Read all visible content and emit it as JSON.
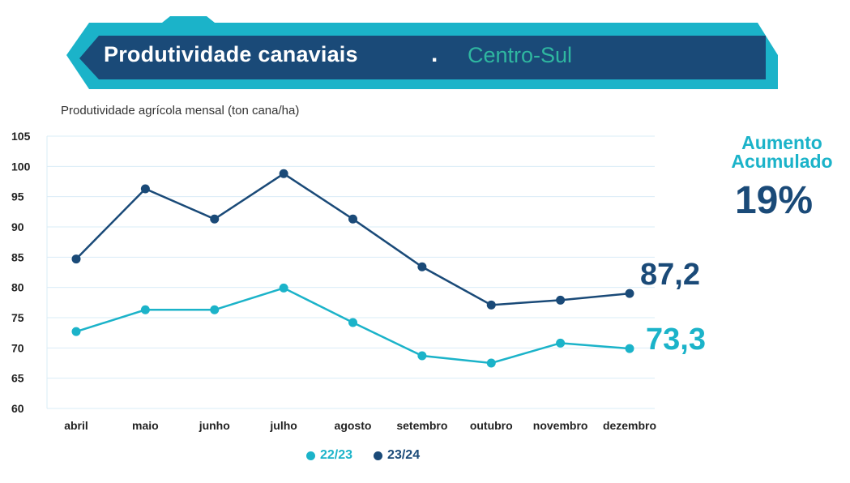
{
  "header": {
    "title": "Produtividade canaviais",
    "separator": ".",
    "region": "Centro-Sul"
  },
  "subtitle": "Produtividade agrícola mensal (ton cana/ha)",
  "kpi": {
    "label_line1": "Aumento",
    "label_line2": "Acumulado",
    "value": "19%"
  },
  "end_labels": {
    "s2324": "87,2",
    "s2223": "73,3"
  },
  "legend": [
    {
      "name": "22/23",
      "color": "#1bb3c9"
    },
    {
      "name": "23/24",
      "color": "#1a4a78"
    }
  ],
  "colors": {
    "banner_dark": "#1a4a78",
    "banner_light": "#1bb3c9",
    "region_text": "#2fb7a0",
    "grid": "#d9ecf7"
  },
  "chart_data": {
    "type": "line",
    "title": "Produtividade agrícola mensal (ton cana/ha)",
    "categories": [
      "abril",
      "maio",
      "junho",
      "julho",
      "agosto",
      "setembro",
      "outubro",
      "novembro",
      "dezembro"
    ],
    "yticks": [
      60,
      65,
      70,
      75,
      80,
      85,
      90,
      95,
      100,
      105
    ],
    "ylim": [
      60,
      105
    ],
    "series": [
      {
        "name": "22/23",
        "color": "#1bb3c9",
        "values": [
          72.7,
          76.3,
          76.3,
          79.9,
          74.2,
          68.7,
          67.5,
          70.8,
          69.9
        ]
      },
      {
        "name": "23/24",
        "color": "#1a4a78",
        "values": [
          84.7,
          96.3,
          91.3,
          98.8,
          91.3,
          83.4,
          77.1,
          77.9,
          79.0
        ]
      }
    ]
  }
}
